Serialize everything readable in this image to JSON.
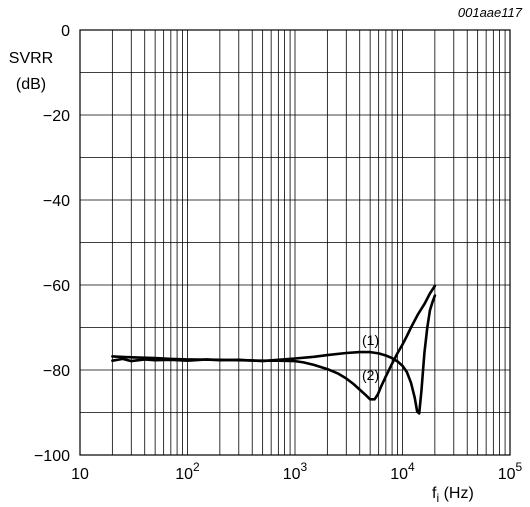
{
  "chart_data": {
    "type": "line",
    "figure_code": "001aae117",
    "ylabel_line1": "SVRR",
    "ylabel_line2": "(dB)",
    "xlabel_main": "f",
    "xlabel_sub": "i",
    "xlabel_unit": " (Hz)",
    "x_scale": "log",
    "xlim": [
      10,
      100000
    ],
    "ylim": [
      -100,
      0
    ],
    "grid": true,
    "x_ticks": [
      {
        "value": 10,
        "base": "10",
        "exp": ""
      },
      {
        "value": 100,
        "base": "10",
        "exp": "2"
      },
      {
        "value": 1000,
        "base": "10",
        "exp": "3"
      },
      {
        "value": 10000,
        "base": "10",
        "exp": "4"
      },
      {
        "value": 100000,
        "base": "10",
        "exp": "5"
      }
    ],
    "y_ticks": [
      {
        "value": 0,
        "label": "0"
      },
      {
        "value": -20,
        "label": "−20"
      },
      {
        "value": -40,
        "label": "−40"
      },
      {
        "value": -60,
        "label": "−60"
      },
      {
        "value": -80,
        "label": "−80"
      },
      {
        "value": -100,
        "label": "−100"
      }
    ],
    "series": [
      {
        "name": "(1)",
        "x": [
          20,
          25,
          30,
          40,
          50,
          70,
          100,
          150,
          200,
          300,
          500,
          700,
          1000,
          1500,
          2000,
          3000,
          4000,
          5000,
          6000,
          7000,
          8000,
          9000,
          10000,
          11000,
          12000,
          13000,
          13700,
          14300,
          15000,
          16000,
          17000,
          18000,
          19000,
          20000
        ],
        "y": [
          -77.8,
          -77.4,
          -77.9,
          -77.5,
          -77.7,
          -77.6,
          -77.8,
          -77.5,
          -77.7,
          -77.6,
          -77.9,
          -77.6,
          -77.3,
          -76.9,
          -76.5,
          -76.0,
          -75.8,
          -75.8,
          -76.1,
          -76.6,
          -77.2,
          -78.0,
          -79.0,
          -80.5,
          -83.0,
          -86.5,
          -89.8,
          -90.2,
          -85.0,
          -76.0,
          -70.0,
          -66.0,
          -64.0,
          -62.5
        ]
      },
      {
        "name": "(2)",
        "x": [
          20,
          30,
          50,
          70,
          100,
          200,
          300,
          500,
          700,
          1000,
          1200,
          1500,
          2000,
          2500,
          3000,
          3500,
          4000,
          4500,
          5000,
          5500,
          5900,
          6300,
          7000,
          8000,
          9000,
          10000,
          11000,
          12000,
          14000,
          16000,
          18000,
          20000
        ],
        "y": [
          -76.8,
          -77.0,
          -77.2,
          -77.4,
          -77.5,
          -77.6,
          -77.7,
          -77.8,
          -77.8,
          -77.9,
          -78.2,
          -78.8,
          -79.8,
          -80.8,
          -82.0,
          -83.3,
          -84.6,
          -85.8,
          -86.9,
          -86.9,
          -85.7,
          -84.0,
          -81.5,
          -78.5,
          -76.0,
          -74.0,
          -72.0,
          -70.0,
          -66.8,
          -64.5,
          -62.0,
          -60.2
        ]
      }
    ]
  }
}
